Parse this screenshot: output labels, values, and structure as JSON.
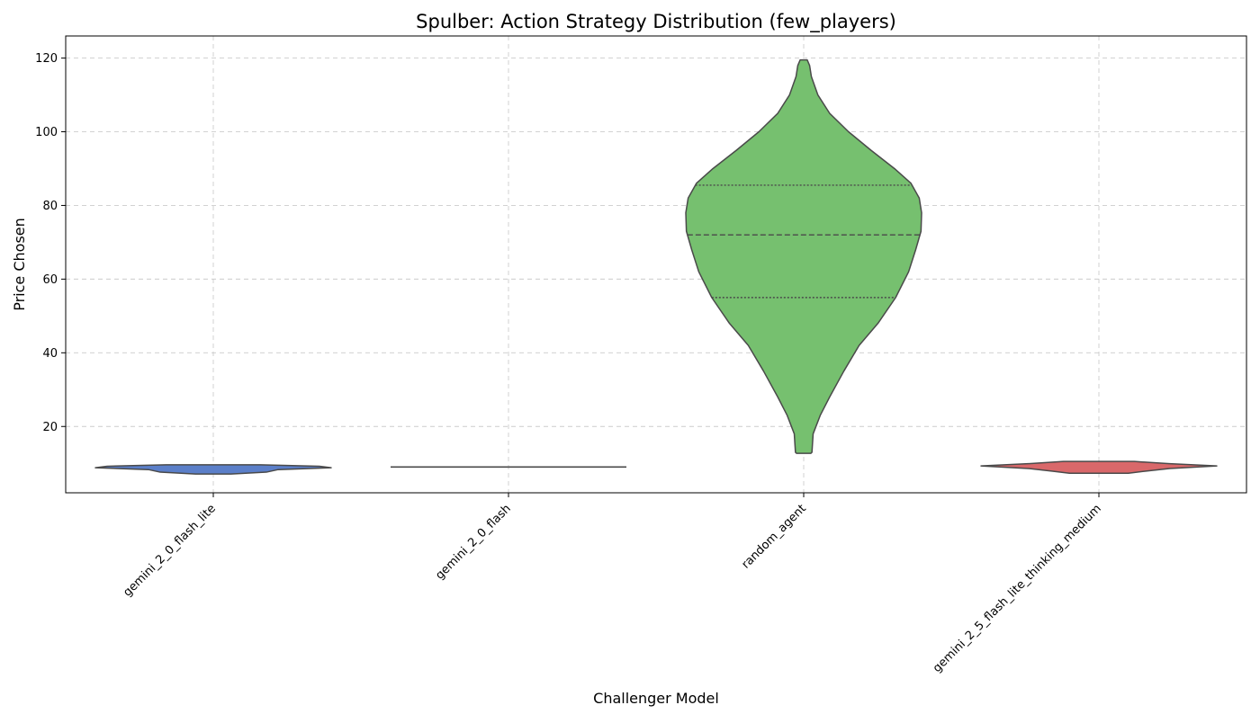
{
  "chart_data": {
    "type": "violin",
    "title": "Spulber: Action Strategy Distribution (few_players)",
    "xlabel": "Challenger Model",
    "ylabel": "Price Chosen",
    "ylim": [
      2,
      126
    ],
    "yticks": [
      20,
      40,
      60,
      80,
      100,
      120
    ],
    "grid": true,
    "categories": [
      "gemini_2_0_flash_lite",
      "gemini_2_0_flash",
      "random_agent",
      "gemini_2_5_flash_lite_thinking_medium"
    ],
    "violins": [
      {
        "category": "gemini_2_0_flash_lite",
        "color": "#5b7fc9",
        "profile": [
          [
            7.1,
            0.15
          ],
          [
            7.6,
            0.45
          ],
          [
            8.3,
            0.55
          ],
          [
            8.8,
            1.0
          ],
          [
            9.2,
            0.9
          ],
          [
            9.6,
            0.4
          ]
        ],
        "quartiles": []
      },
      {
        "category": "gemini_2_0_flash",
        "color": "#5b7fc9",
        "profile": [
          [
            8.95,
            1.0
          ],
          [
            9.05,
            1.0
          ]
        ],
        "quartiles": []
      },
      {
        "category": "random_agent",
        "color": "#76c06f",
        "profile": [
          [
            12.7,
            0.06
          ],
          [
            13,
            0.07
          ],
          [
            18,
            0.08
          ],
          [
            23,
            0.14
          ],
          [
            28,
            0.22
          ],
          [
            35,
            0.34
          ],
          [
            42,
            0.47
          ],
          [
            48,
            0.63
          ],
          [
            55,
            0.78
          ],
          [
            62,
            0.89
          ],
          [
            68,
            0.95
          ],
          [
            73,
            0.995
          ],
          [
            78,
            1.0
          ],
          [
            82,
            0.98
          ],
          [
            86,
            0.91
          ],
          [
            90,
            0.77
          ],
          [
            95,
            0.57
          ],
          [
            100,
            0.38
          ],
          [
            105,
            0.22
          ],
          [
            110,
            0.12
          ],
          [
            115,
            0.065
          ],
          [
            118,
            0.05
          ],
          [
            119.5,
            0.03
          ]
        ],
        "quartiles": [
          55,
          72,
          85.5
        ]
      },
      {
        "category": "gemini_2_5_flash_lite_thinking_medium",
        "color": "#d9686a",
        "profile": [
          [
            7.3,
            0.25
          ],
          [
            7.9,
            0.4
          ],
          [
            8.6,
            0.6
          ],
          [
            9.3,
            1.0
          ],
          [
            9.9,
            0.6
          ],
          [
            10.5,
            0.3
          ]
        ],
        "quartiles": []
      }
    ]
  }
}
